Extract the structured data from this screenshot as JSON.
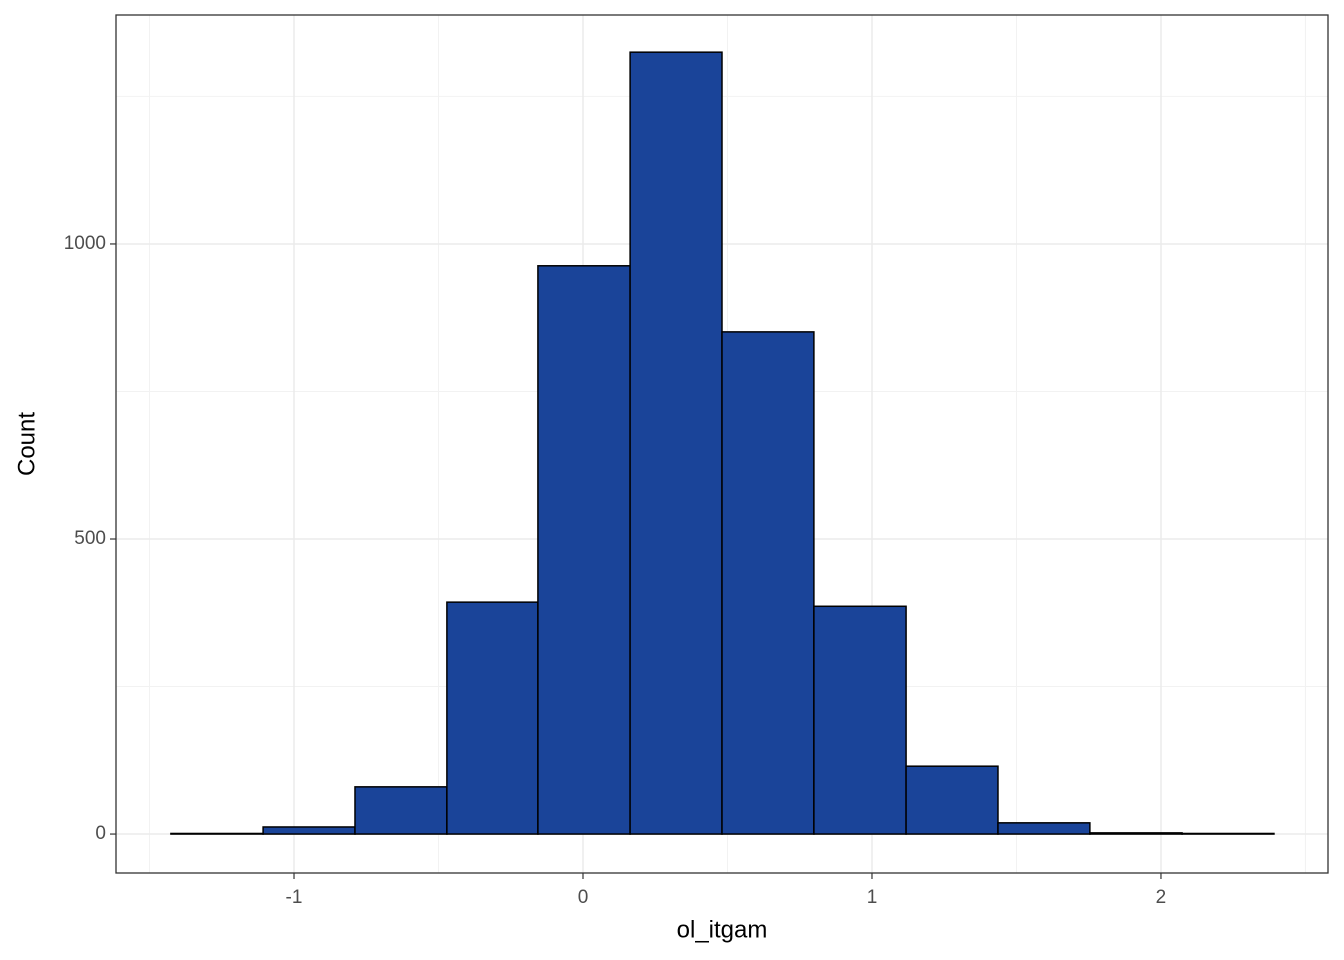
{
  "chart_data": {
    "type": "histogram",
    "x_label": "ol_itgam",
    "y_label": "Count",
    "bins": [
      -1.426,
      -1.107,
      -0.789,
      -0.471,
      -0.156,
      0.163,
      0.481,
      0.799,
      1.118,
      1.436,
      1.754,
      2.073,
      2.391
    ],
    "values": [
      1,
      12,
      80,
      393,
      963,
      1325,
      851,
      386,
      115,
      19,
      2,
      1
    ],
    "color": "#1a4499",
    "edge_color": "#000000",
    "xlim": [
      -1.616,
      2.578
    ],
    "ylim": [
      -66,
      1388
    ],
    "xticks": [
      -1,
      0,
      1,
      2
    ],
    "yticks": [
      0,
      500,
      1000
    ],
    "x_minor_grid": [
      -1.5,
      -0.5,
      0.5,
      1.5,
      2.5
    ],
    "y_minor_grid": [
      250,
      750,
      1250
    ],
    "grid": true
  }
}
